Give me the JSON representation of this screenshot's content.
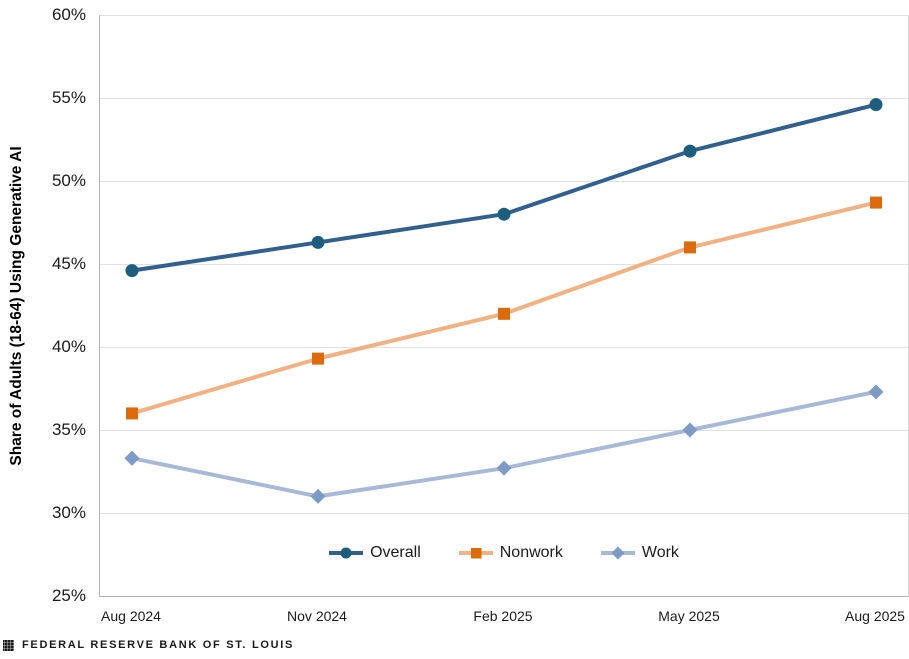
{
  "chart_data": {
    "type": "line",
    "categories": [
      "Aug 2024",
      "Nov 2024",
      "Feb 2025",
      "May 2025",
      "Aug 2025"
    ],
    "series": [
      {
        "name": "Overall",
        "marker": "circle",
        "line_color": "#31608F",
        "marker_color": "#1D5E7E",
        "values": [
          44.6,
          46.3,
          48.0,
          51.8,
          54.6
        ]
      },
      {
        "name": "Nonwork",
        "marker": "square",
        "line_color": "#F2B183",
        "marker_color": "#DB6B0D",
        "values": [
          36.0,
          39.3,
          42.0,
          46.0,
          48.7
        ]
      },
      {
        "name": "Work",
        "marker": "diamond",
        "line_color": "#A7B9D6",
        "marker_color": "#7E9BC6",
        "values": [
          33.3,
          31.0,
          32.7,
          35.0,
          37.3
        ]
      }
    ],
    "title": "",
    "xlabel": "",
    "ylabel": "Share of Adults (18-64) Using Generative AI",
    "ylim": [
      25,
      60
    ],
    "ytick_step": 5,
    "ytick_suffix": "%",
    "grid": true,
    "grid_color": "#e0e0e0",
    "axis_color": "#b3b3b3",
    "legend_position": "bottom-inside"
  },
  "footer": {
    "brand": "FEDERAL RESERVE BANK OF ST. LOUIS",
    "logo_icon": "stlouis-fed-eagle-icon"
  }
}
